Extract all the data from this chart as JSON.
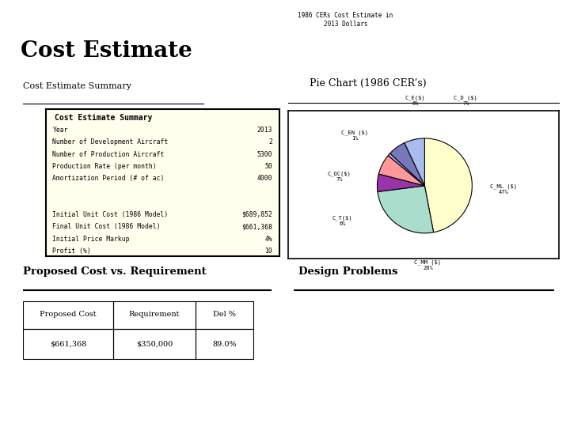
{
  "title": "Cost Estimate",
  "header_bg": "#8a9ea0",
  "page_bg": "#ffffff",
  "pie_section_title": "Pie Chart (1986 CER’s)",
  "pie_chart_title": "1986 CERs Cost Estimate in\n2013 Dollars",
  "pie_labels": [
    "C_ML ($)",
    "C_MM ($)",
    "C_T ($)",
    "C_QC ($)",
    "C_EN ($)",
    "C_E ($)",
    "C_D ($)"
  ],
  "pie_values": [
    47,
    26,
    6,
    7,
    1,
    6,
    7
  ],
  "pie_colors": [
    "#ffffcc",
    "#aaddcc",
    "#9933aa",
    "#ff9999",
    "#aaaaee",
    "#7777bb",
    "#aabbee"
  ],
  "pie_pct_labels": [
    "47%",
    "26%",
    "6%",
    "7%",
    "1%",
    "6%",
    "7%"
  ],
  "summary_section_title": "Cost Estimate Summary",
  "summary_box_title": "Cost Estimate Summary",
  "summary_rows": [
    [
      "Year",
      "2013"
    ],
    [
      "Number of Development Aircraft",
      "2"
    ],
    [
      "Number of Production Aircraft",
      "5300"
    ],
    [
      "Production Rate (per month)",
      "50"
    ],
    [
      "Amortization Period (# of ac)",
      "4000"
    ],
    [
      "",
      ""
    ],
    [
      "",
      ""
    ],
    [
      "Initial Unit Cost (1986 Model)",
      "$689,852"
    ],
    [
      "Final Unit Cost (1986 Model)",
      "$661,368"
    ],
    [
      "Initial Price Markup",
      "4%"
    ],
    [
      "Profit (%)",
      "10"
    ]
  ],
  "summary_box_bg": "#ffffee",
  "proposed_section_title": "Proposed Cost vs. Requirement",
  "proposed_headers": [
    "Proposed Cost",
    "Requirement",
    "Del %"
  ],
  "proposed_values": [
    "$661,368",
    "$350,000",
    "89.0%"
  ],
  "design_section_title": "Design Problems",
  "divider_color": "#aaaaaa"
}
